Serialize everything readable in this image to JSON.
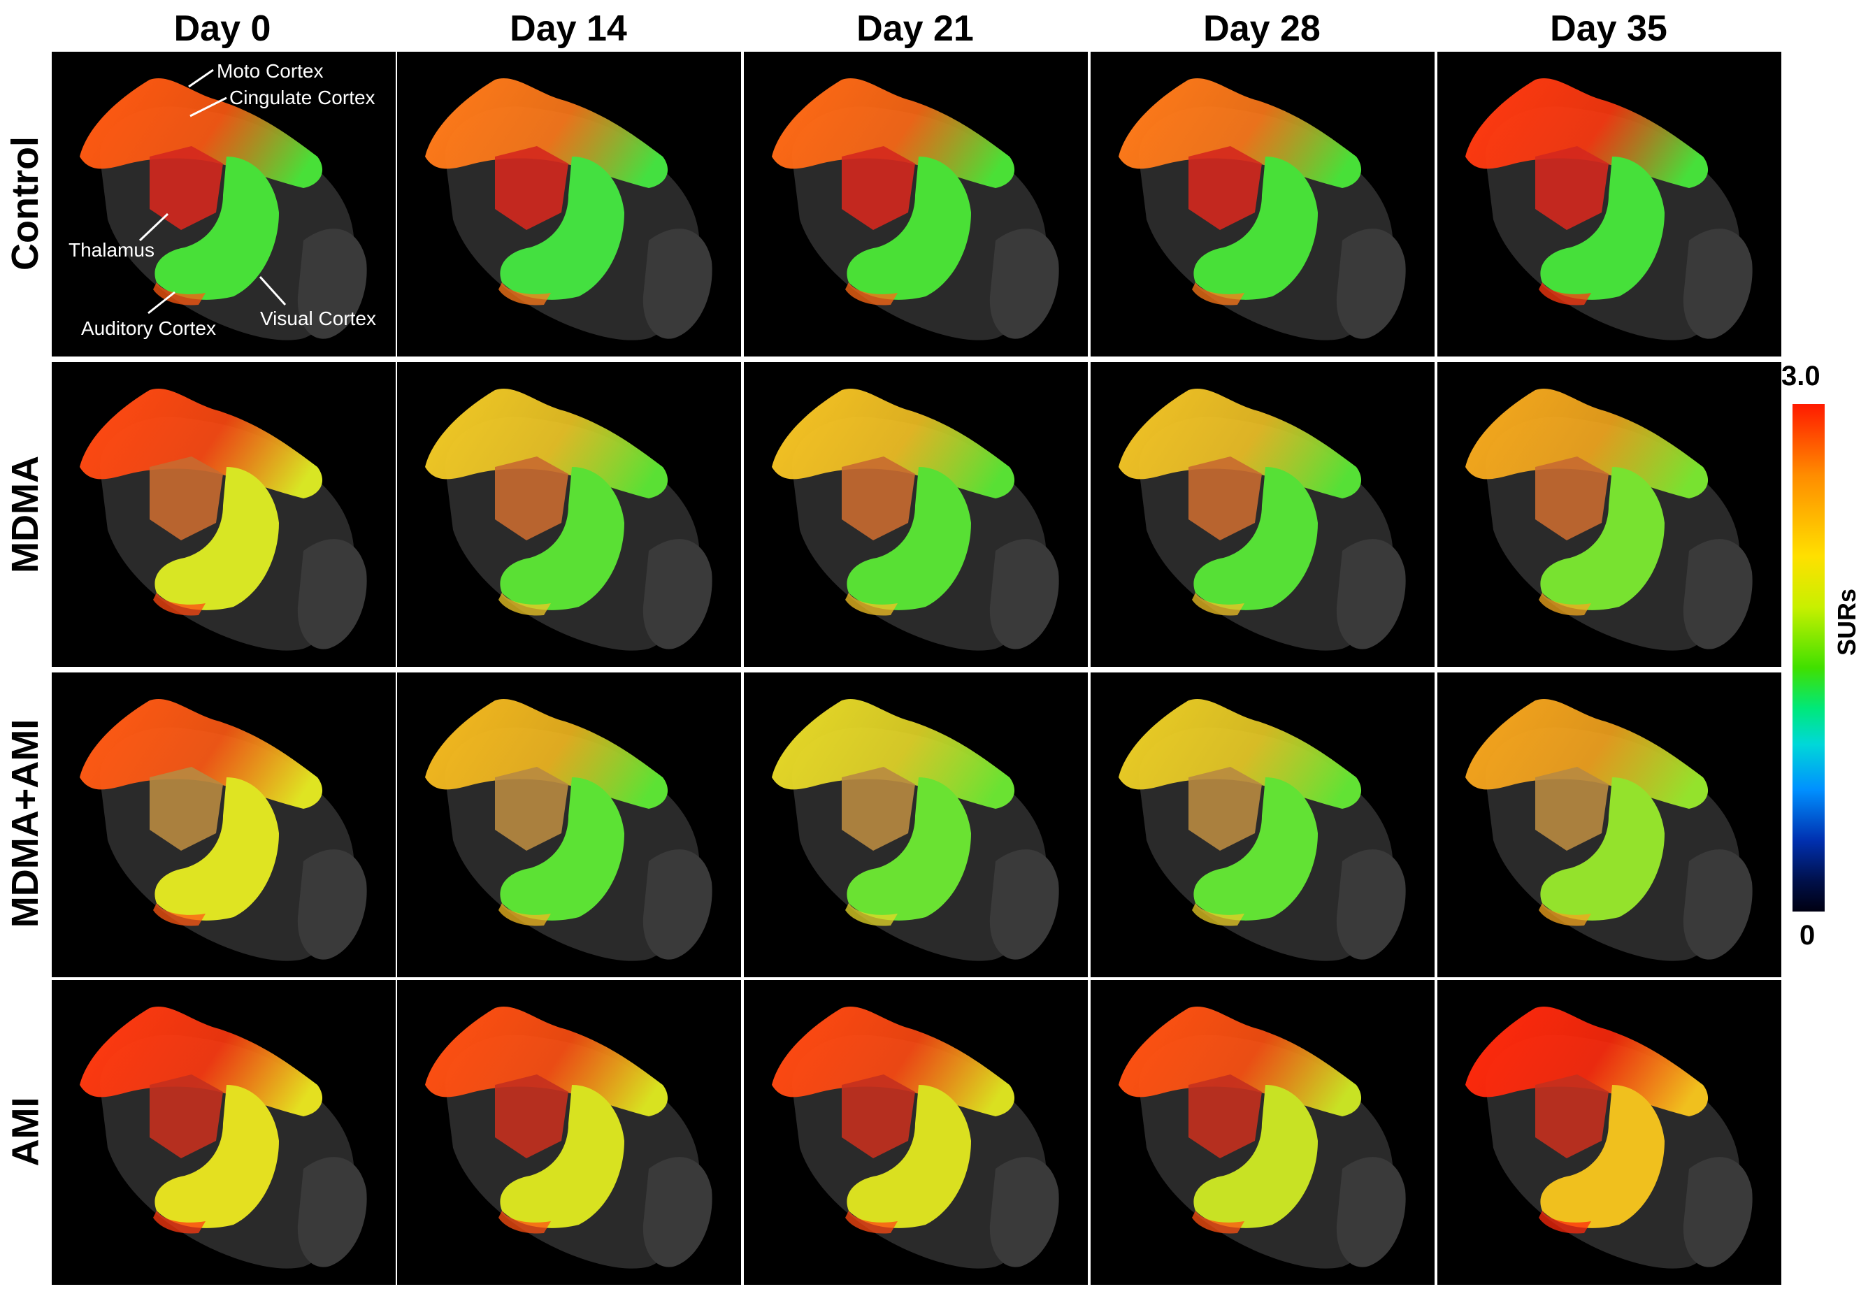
{
  "columns": [
    "Day 0",
    "Day 14",
    "Day 21",
    "Day 28",
    "Day 35"
  ],
  "rows": [
    {
      "label": "Control",
      "cortex": [
        "#ff5a12",
        "#ff7a1a",
        "#ff6a16",
        "#ff7a1a",
        "#ff3a10"
      ],
      "lower": [
        "#48e038",
        "#44e040",
        "#4ae036",
        "#48e038",
        "#46e03a"
      ],
      "thalamus": "#d4281e"
    },
    {
      "label": "MDMA",
      "cortex": [
        "#ff4a12",
        "#f0c826",
        "#f4c224",
        "#f0c226",
        "#f4a81e"
      ],
      "lower": [
        "#d8e624",
        "#5ae034",
        "#58e034",
        "#56e036",
        "#78e230"
      ],
      "thalamus": "#c86a30"
    },
    {
      "label": "MDMA+AMI",
      "cortex": [
        "#ff5a14",
        "#f2b820",
        "#e6d828",
        "#eacc26",
        "#f4a41e"
      ],
      "lower": [
        "#dfe422",
        "#5ce234",
        "#6ae232",
        "#62e234",
        "#94e22c"
      ],
      "thalamus": "#b88a40"
    },
    {
      "label": "AMI",
      "cortex": [
        "#ff3a10",
        "#ff5012",
        "#ff4a12",
        "#ff5212",
        "#ff2a0c"
      ],
      "lower": [
        "#e4e020",
        "#d8e220",
        "#dae020",
        "#c8e224",
        "#f0c01e"
      ],
      "thalamus": "#c4301e"
    }
  ],
  "annotations": {
    "moto": "Moto Cortex",
    "cingulate": "Cingulate Cortex",
    "thalamus": "Thalamus",
    "auditory": "Auditory Cortex",
    "visual": "Visual Cortex"
  },
  "colorbar": {
    "max": "3.0",
    "min": "0",
    "label": "SURs",
    "colors": [
      "#ff1a00",
      "#ff8c00",
      "#ffe000",
      "#40e000",
      "#00d8d8",
      "#0090ff",
      "#000012"
    ]
  }
}
